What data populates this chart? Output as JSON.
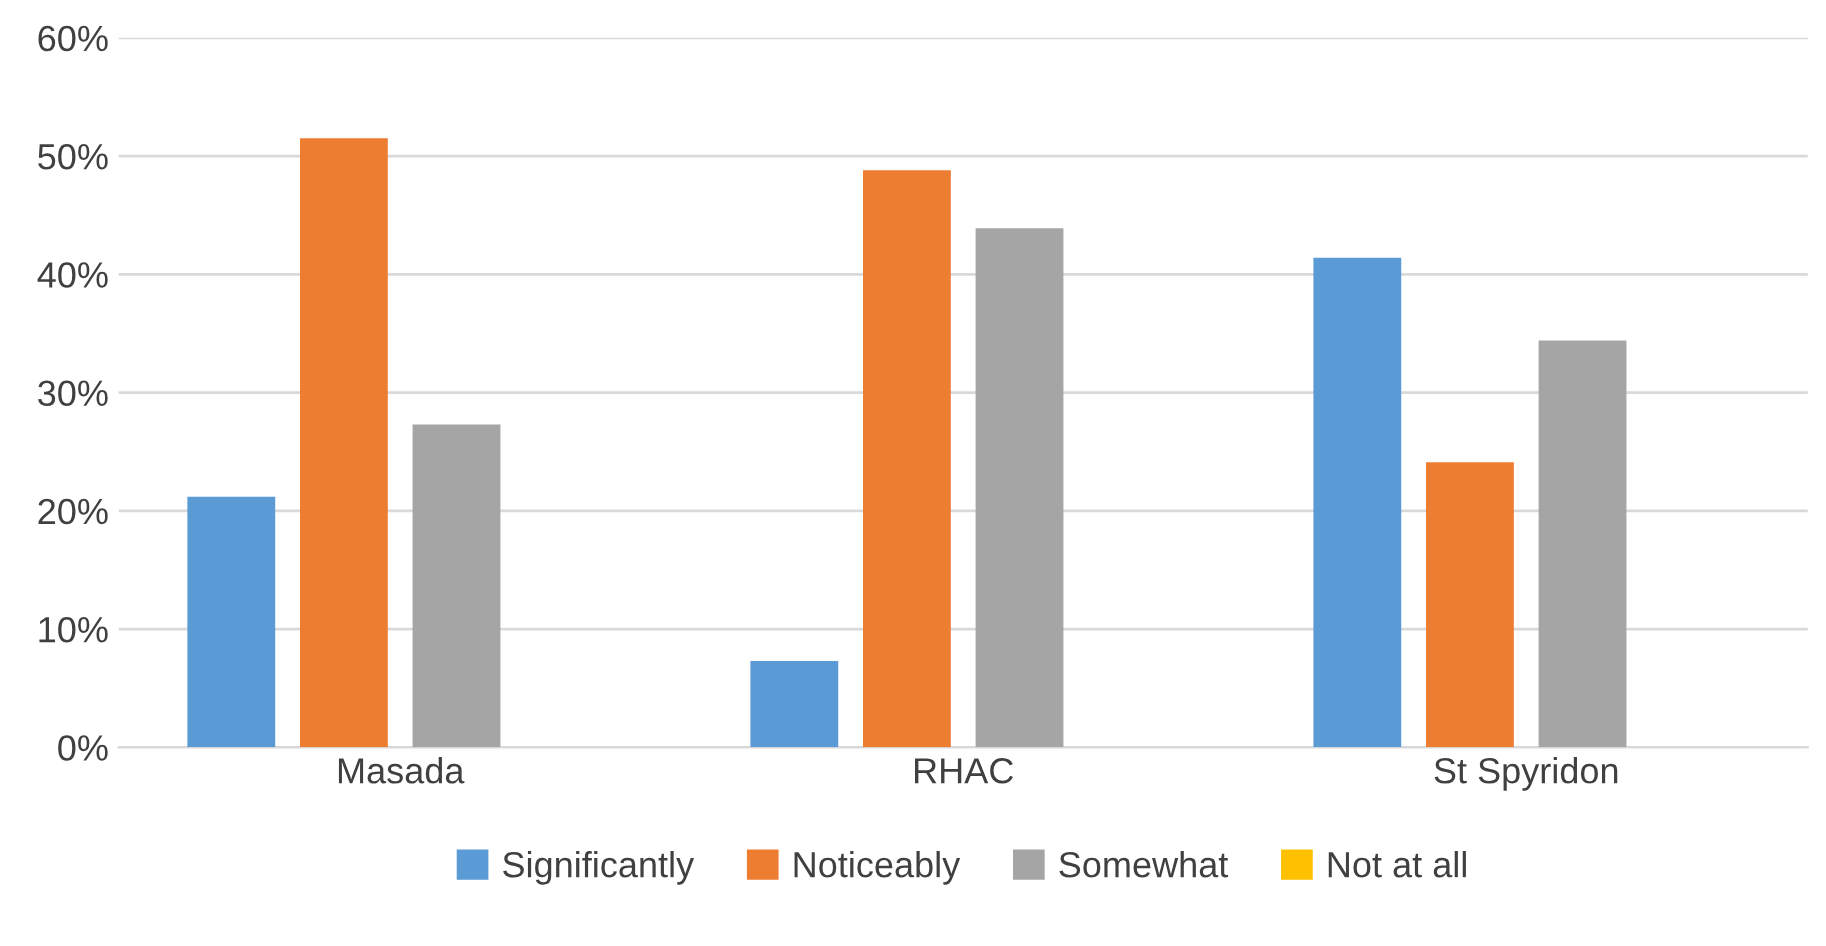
{
  "chart_data": {
    "type": "bar",
    "categories": [
      "Masada",
      "RHAC",
      "St Spyridon"
    ],
    "series": [
      {
        "name": "Significantly",
        "color": "#5b9bd5",
        "values": [
          21.2,
          7.3,
          41.4
        ]
      },
      {
        "name": "Noticeably",
        "color": "#ed7d31",
        "values": [
          51.5,
          48.8,
          24.1
        ]
      },
      {
        "name": "Somewhat",
        "color": "#a5a5a5",
        "values": [
          27.3,
          43.9,
          34.4
        ]
      },
      {
        "name": "Not at all",
        "color": "#ffc000",
        "values": [
          0,
          0,
          0
        ]
      }
    ],
    "ylim": [
      0,
      60
    ],
    "yticks": [
      {
        "value": 0,
        "label": "0%"
      },
      {
        "value": 10,
        "label": "10%"
      },
      {
        "value": 20,
        "label": "20%"
      },
      {
        "value": 30,
        "label": "30%"
      },
      {
        "value": 40,
        "label": "40%"
      },
      {
        "value": 50,
        "label": "50%"
      },
      {
        "value": 60,
        "label": "60%"
      }
    ],
    "grid": "y",
    "legend": "bottom"
  }
}
